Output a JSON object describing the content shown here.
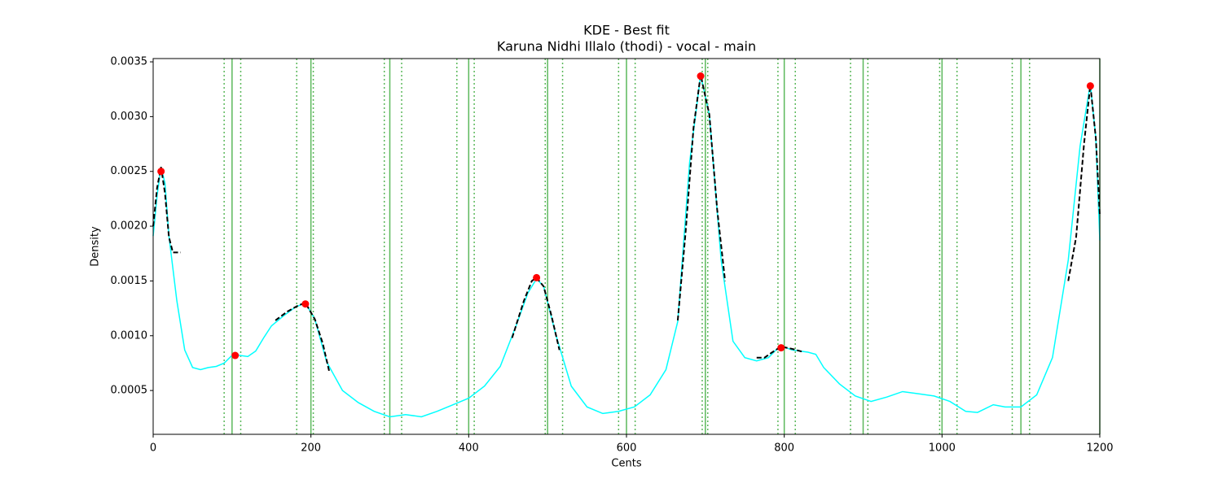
{
  "chart_data": {
    "type": "line",
    "title": "KDE - Best fit",
    "subtitle": "Karuna Nidhi Illalo (thodi) - vocal - main",
    "x_label": "Cents",
    "y_label": "Density",
    "xlim": [
      0,
      1200
    ],
    "ylim": [
      0.0001,
      0.00353
    ],
    "xticks": [
      0,
      200,
      400,
      600,
      800,
      1000,
      1200
    ],
    "yticks": [
      0.0005,
      {
        "value": 0.001,
        "label": "0.0010"
      },
      0.0015,
      {
        "value": 0.002,
        "label": "0.0020"
      },
      0.0025,
      {
        "value": 0.003,
        "label": "0.0030"
      },
      0.0035
    ],
    "reference_lines": {
      "color": "#5cb85c",
      "x": [
        100,
        200,
        300,
        400,
        500,
        600,
        700,
        800,
        900,
        1000,
        1100,
        1200
      ]
    },
    "tolerance_lines": {
      "color": "#5cb85c",
      "x": [
        90,
        111,
        182,
        203,
        293,
        315,
        385,
        407,
        497,
        519,
        590,
        611,
        696,
        703,
        792,
        814,
        884,
        906,
        997,
        1019,
        1089,
        1111
      ]
    },
    "series": [
      {
        "style": "solid",
        "color": "#00ffff",
        "x": [
          0,
          5,
          10,
          15,
          20,
          30,
          40,
          50,
          60,
          70,
          80,
          90,
          100,
          110,
          120,
          130,
          140,
          150,
          165,
          180,
          193,
          205,
          220,
          240,
          260,
          280,
          300,
          320,
          340,
          360,
          380,
          400,
          420,
          440,
          460,
          475,
          486,
          495,
          510,
          530,
          550,
          570,
          590,
          610,
          630,
          650,
          665,
          680,
          694,
          705,
          720,
          735,
          750,
          765,
          780,
          795,
          810,
          830,
          840,
          850,
          870,
          890,
          910,
          930,
          950,
          970,
          990,
          1010,
          1030,
          1045,
          1065,
          1080,
          1100,
          1120,
          1140,
          1160,
          1175,
          1188,
          1195,
          1200
        ],
        "values": [
          0.00191,
          0.00228,
          0.00254,
          0.00239,
          0.00191,
          0.00132,
          0.00087,
          0.00071,
          0.00069,
          0.00071,
          0.00072,
          0.00075,
          0.00082,
          0.00082,
          0.00081,
          0.00086,
          0.00098,
          0.00109,
          0.00118,
          0.00126,
          0.0013,
          0.00115,
          0.00076,
          0.0005,
          0.00039,
          0.00031,
          0.00026,
          0.00028,
          0.00026,
          0.00031,
          0.00037,
          0.00043,
          0.00054,
          0.00072,
          0.00109,
          0.00139,
          0.00152,
          0.00145,
          0.00102,
          0.00054,
          0.00035,
          0.00029,
          0.00031,
          0.00035,
          0.00046,
          0.00069,
          0.00113,
          0.00258,
          0.00338,
          0.00302,
          0.00169,
          0.00095,
          0.0008,
          0.00077,
          0.0008,
          0.00091,
          0.00087,
          0.00085,
          0.00083,
          0.00071,
          0.00056,
          0.00045,
          0.0004,
          0.00044,
          0.00049,
          0.00047,
          0.00045,
          0.0004,
          0.00031,
          0.0003,
          0.00037,
          0.00035,
          0.00035,
          0.00046,
          0.0008,
          0.00169,
          0.00273,
          0.0033,
          0.0028,
          0.00187
        ]
      },
      {
        "style": "dashed",
        "color": "#000000",
        "x": [
          0,
          5,
          10,
          15,
          20,
          25,
          35
        ],
        "values": [
          0.002,
          0.00235,
          0.00254,
          0.0023,
          0.0019,
          0.00176,
          0.00176
        ]
      },
      {
        "style": "dashed",
        "color": "#000000",
        "x": [
          155,
          170,
          185,
          193,
          205,
          215,
          223
        ],
        "values": [
          0.00114,
          0.00122,
          0.00128,
          0.0013,
          0.00115,
          0.00093,
          0.00068
        ]
      },
      {
        "style": "dashed",
        "color": "#000000",
        "x": [
          455,
          470,
          480,
          486,
          495,
          505,
          515
        ],
        "values": [
          0.00098,
          0.00132,
          0.0015,
          0.00153,
          0.00145,
          0.00118,
          0.00087
        ]
      },
      {
        "style": "dashed",
        "color": "#000000",
        "x": [
          665,
          675,
          685,
          694,
          705,
          715,
          725
        ],
        "values": [
          0.00114,
          0.00195,
          0.0029,
          0.00338,
          0.00302,
          0.00215,
          0.0015
        ]
      },
      {
        "style": "dashed",
        "color": "#000000",
        "x": [
          765,
          775,
          785,
          796,
          810,
          825
        ],
        "values": [
          0.0008,
          0.0008,
          0.00085,
          0.0009,
          0.00088,
          0.00085
        ]
      },
      {
        "style": "dashed",
        "color": "#000000",
        "x": [
          1160,
          1170,
          1180,
          1188,
          1195,
          1200
        ],
        "values": [
          0.0015,
          0.0019,
          0.00275,
          0.00329,
          0.0028,
          0.0021
        ]
      }
    ],
    "peaks": {
      "color": "#ff0000",
      "x": [
        10,
        104,
        193,
        486,
        694,
        796,
        1188
      ],
      "values": [
        0.0025,
        0.00082,
        0.00129,
        0.00153,
        0.00337,
        0.00089,
        0.00328
      ]
    }
  }
}
